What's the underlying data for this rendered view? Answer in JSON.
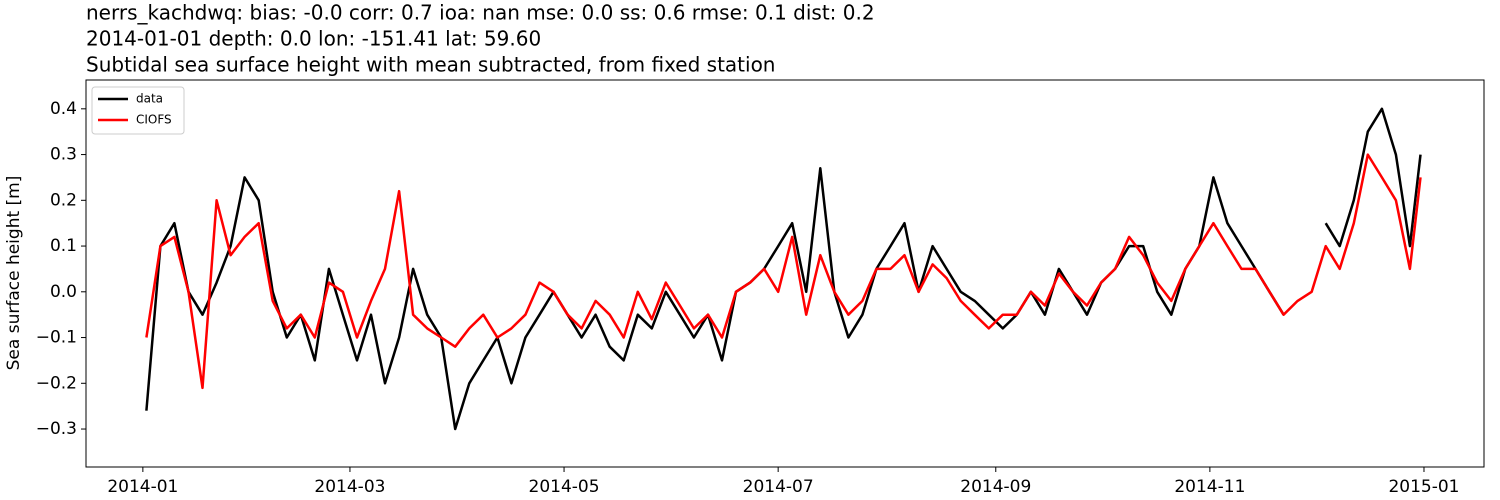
{
  "chart_data": {
    "type": "line",
    "title_lines": [
      "nerrs_kachdwq: bias: -0.0  corr: 0.7  ioa: nan  mse: 0.0  ss: 0.6  rmse: 0.1  dist: 0.2",
      "2014-01-01 depth: 0.0 lon: -151.41 lat: 59.60",
      "Subtidal sea surface height with mean subtracted, from fixed station"
    ],
    "ylabel": "Sea surface height [m]",
    "x": [
      1,
      5,
      9,
      13,
      17,
      21,
      25,
      29,
      33,
      37,
      41,
      45,
      49,
      53,
      57,
      61,
      65,
      69,
      73,
      77,
      81,
      85,
      89,
      93,
      97,
      101,
      105,
      109,
      113,
      117,
      121,
      125,
      129,
      133,
      137,
      141,
      145,
      149,
      153,
      157,
      161,
      165,
      169,
      173,
      177,
      181,
      185,
      189,
      193,
      197,
      201,
      205,
      209,
      213,
      217,
      221,
      225,
      229,
      233,
      237,
      241,
      245,
      249,
      253,
      257,
      261,
      265,
      269,
      273,
      277,
      281,
      285,
      289,
      293,
      297,
      301,
      305,
      309,
      313,
      317,
      321,
      325,
      329,
      333,
      337,
      341,
      345,
      349,
      353,
      357,
      361,
      364
    ],
    "series": [
      {
        "name": "data",
        "color": "#000000",
        "values": [
          -0.26,
          0.1,
          0.15,
          0.0,
          -0.05,
          0.02,
          0.1,
          0.25,
          0.2,
          0.0,
          -0.1,
          -0.05,
          -0.15,
          0.05,
          -0.05,
          -0.15,
          -0.05,
          -0.2,
          -0.1,
          0.05,
          -0.05,
          -0.1,
          -0.3,
          -0.2,
          -0.15,
          -0.1,
          -0.2,
          -0.1,
          -0.05,
          0.0,
          -0.05,
          -0.1,
          -0.05,
          -0.12,
          -0.15,
          -0.05,
          -0.08,
          0.0,
          -0.05,
          -0.1,
          -0.05,
          -0.15,
          0.0,
          0.02,
          0.05,
          0.1,
          0.15,
          0.0,
          0.27,
          0.0,
          -0.1,
          -0.05,
          0.05,
          0.1,
          0.15,
          0.0,
          0.1,
          0.05,
          0.0,
          -0.02,
          -0.05,
          -0.08,
          -0.05,
          0.0,
          -0.05,
          0.05,
          0.0,
          -0.05,
          0.02,
          0.05,
          0.1,
          0.1,
          0.0,
          -0.05,
          0.05,
          0.1,
          0.25,
          0.15,
          0.1,
          0.05,
          0.0,
          -0.05,
          null,
          null,
          0.15,
          0.1,
          0.2,
          0.35,
          0.4,
          0.3,
          0.1,
          0.3
        ]
      },
      {
        "name": "CIOFS",
        "color": "#ff0000",
        "values": [
          -0.1,
          0.1,
          0.12,
          0.0,
          -0.21,
          0.2,
          0.08,
          0.12,
          0.15,
          -0.02,
          -0.08,
          -0.05,
          -0.1,
          0.02,
          0.0,
          -0.1,
          -0.02,
          0.05,
          0.22,
          -0.05,
          -0.08,
          -0.1,
          -0.12,
          -0.08,
          -0.05,
          -0.1,
          -0.08,
          -0.05,
          0.02,
          0.0,
          -0.05,
          -0.08,
          -0.02,
          -0.05,
          -0.1,
          0.0,
          -0.06,
          0.02,
          -0.03,
          -0.08,
          -0.05,
          -0.1,
          0.0,
          0.02,
          0.05,
          0.0,
          0.12,
          -0.05,
          0.08,
          0.0,
          -0.05,
          -0.02,
          0.05,
          0.05,
          0.08,
          0.0,
          0.06,
          0.03,
          -0.02,
          -0.05,
          -0.08,
          -0.05,
          -0.05,
          0.0,
          -0.03,
          0.04,
          0.0,
          -0.03,
          0.02,
          0.05,
          0.12,
          0.08,
          0.02,
          -0.02,
          0.05,
          0.1,
          0.15,
          0.1,
          0.05,
          0.05,
          0.0,
          -0.05,
          -0.02,
          0.0,
          0.1,
          0.05,
          0.15,
          0.3,
          0.25,
          0.2,
          0.05,
          0.25
        ]
      }
    ],
    "xlim": [
      -16.2,
      382.1
    ],
    "xticks": [
      {
        "value": 0,
        "label": "2014-01"
      },
      {
        "value": 59,
        "label": "2014-03"
      },
      {
        "value": 120,
        "label": "2014-05"
      },
      {
        "value": 181,
        "label": "2014-07"
      },
      {
        "value": 243,
        "label": "2014-09"
      },
      {
        "value": 304,
        "label": "2014-11"
      },
      {
        "value": 365,
        "label": "2015-01"
      }
    ],
    "ylim": [
      -0.383,
      0.463
    ],
    "yticks": [
      {
        "value": -0.3,
        "label": "−0.3"
      },
      {
        "value": -0.2,
        "label": "−0.2"
      },
      {
        "value": -0.1,
        "label": "−0.1"
      },
      {
        "value": 0,
        "label": "0.0"
      },
      0.1,
      0.2,
      0.3,
      0.4
    ],
    "legend": "upper left"
  }
}
